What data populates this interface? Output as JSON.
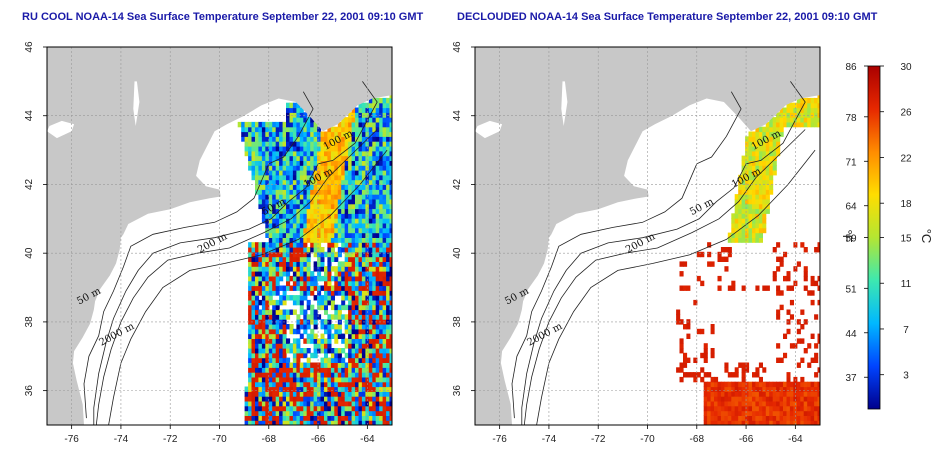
{
  "panels": [
    {
      "title": "RU COOL NOAA-14 Sea Surface Temperature September 22, 2001 09:10 GMT",
      "mode": "raw"
    },
    {
      "title": "DECLOUDED NOAA-14 Sea Surface Temperature September 22, 2001 09:10 GMT",
      "mode": "declouded"
    }
  ],
  "axes": {
    "lon_ticks": [
      "-76",
      "-74",
      "-72",
      "-70",
      "-68",
      "-66",
      "-64"
    ],
    "lat_ticks": [
      "36",
      "38",
      "40",
      "42",
      "44",
      "46"
    ],
    "lon_range": [
      -77,
      -63
    ],
    "lat_range": [
      35,
      46
    ],
    "grid": "dotted"
  },
  "contour_labels": [
    {
      "text": "100 m",
      "lon": -65.7,
      "lat": 43.0
    },
    {
      "text": "100 m",
      "lon": -66.5,
      "lat": 41.9
    },
    {
      "text": "50 m",
      "lon": -68.2,
      "lat": 41.1
    },
    {
      "text": "200 m",
      "lon": -70.8,
      "lat": 40.0
    },
    {
      "text": "50 m",
      "lon": -75.7,
      "lat": 38.5
    },
    {
      "text": "2000 m",
      "lon": -74.8,
      "lat": 37.3
    }
  ],
  "colorbar": {
    "f_labels": [
      "86",
      "78",
      "71",
      "64",
      "59",
      "51",
      "44",
      "37"
    ],
    "c_labels": [
      "30",
      "26",
      "22",
      "18",
      "15",
      "11",
      "7",
      "3"
    ],
    "f_unit": "°F",
    "c_unit": "°C",
    "c_range": [
      0,
      30
    ],
    "colors": [
      "#00008c",
      "#0044ff",
      "#00b8ff",
      "#3de8b0",
      "#b4e632",
      "#ffdd00",
      "#ff8c00",
      "#e62800",
      "#aa0000"
    ]
  },
  "colors": {
    "land": "#c8c8c8",
    "ocean": "#ffffff",
    "contour": "#222222",
    "grid": "#999999"
  }
}
